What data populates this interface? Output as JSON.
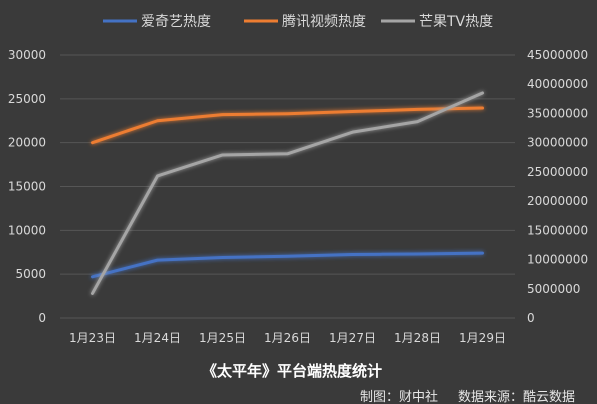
{
  "chart_data": {
    "type": "line",
    "title": "《太平年》平台端热度统计",
    "categories": [
      "1月23日",
      "1月24日",
      "1月25日",
      "1月26日",
      "1月27日",
      "1月28日",
      "1月29日"
    ],
    "left_axis": {
      "min": 0,
      "max": 30000,
      "step": 5000,
      "ticks": [
        "0",
        "5000",
        "10000",
        "15000",
        "20000",
        "25000",
        "30000"
      ]
    },
    "right_axis": {
      "min": 0,
      "max": 45000000,
      "step": 5000000,
      "ticks": [
        "0",
        "5000000",
        "10000000",
        "15000000",
        "20000000",
        "25000000",
        "30000000",
        "35000000",
        "40000000",
        "45000000"
      ]
    },
    "grid": true,
    "legend_position": "top",
    "series": [
      {
        "name": "爱奇艺热度",
        "axis": "left",
        "color": "#4472c4",
        "values": [
          4700,
          6600,
          6900,
          7050,
          7250,
          7300,
          7400
        ]
      },
      {
        "name": "腾讯视频热度",
        "axis": "left",
        "color": "#ed7d31",
        "values": [
          20000,
          22500,
          23200,
          23300,
          23550,
          23800,
          23950
        ]
      },
      {
        "name": "芒果TV热度",
        "axis": "right",
        "color": "#a5a5a5",
        "values": [
          4200000,
          24300000,
          27900000,
          28100000,
          31800000,
          33600000,
          38500000
        ]
      }
    ]
  },
  "footer": {
    "credit_made": "制图：财中社",
    "credit_source": "数据来源：酷云数据"
  }
}
